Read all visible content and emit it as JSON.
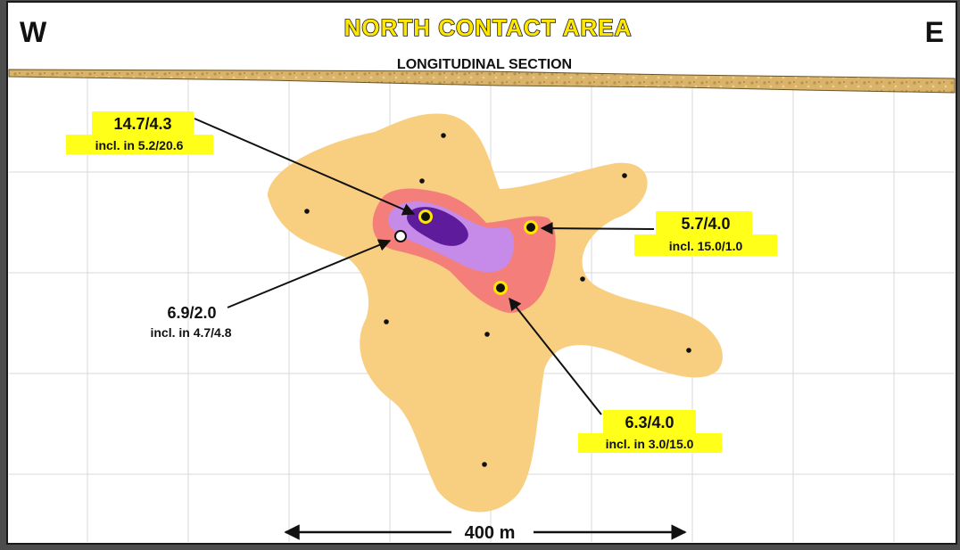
{
  "header": {
    "west": "W",
    "east": "E",
    "title": "NORTH CONTACT AREA",
    "subtitle": "LONGITUDINAL SECTION"
  },
  "intercepts": [
    {
      "main": "14.7/4.3",
      "incl": "incl. in 5.2/20.6"
    },
    {
      "main": "5.7/4.0",
      "incl": "incl. 15.0/1.0"
    },
    {
      "main": "6.9/2.0",
      "incl": "incl. in 4.7/4.8"
    },
    {
      "main": "6.3/4.0",
      "incl": "incl. in 3.0/15.0"
    }
  ],
  "scale_bar": {
    "label": "400 m"
  },
  "colors": {
    "background": "#ffffff",
    "surface_band": "#d9b36a",
    "grade_low": "#f8cf80",
    "grade_medium": "#f47f7a",
    "grade_high": "#c68ae8",
    "grade_highest": "#5e1c9c",
    "label_highlight": "#ffff1a"
  }
}
